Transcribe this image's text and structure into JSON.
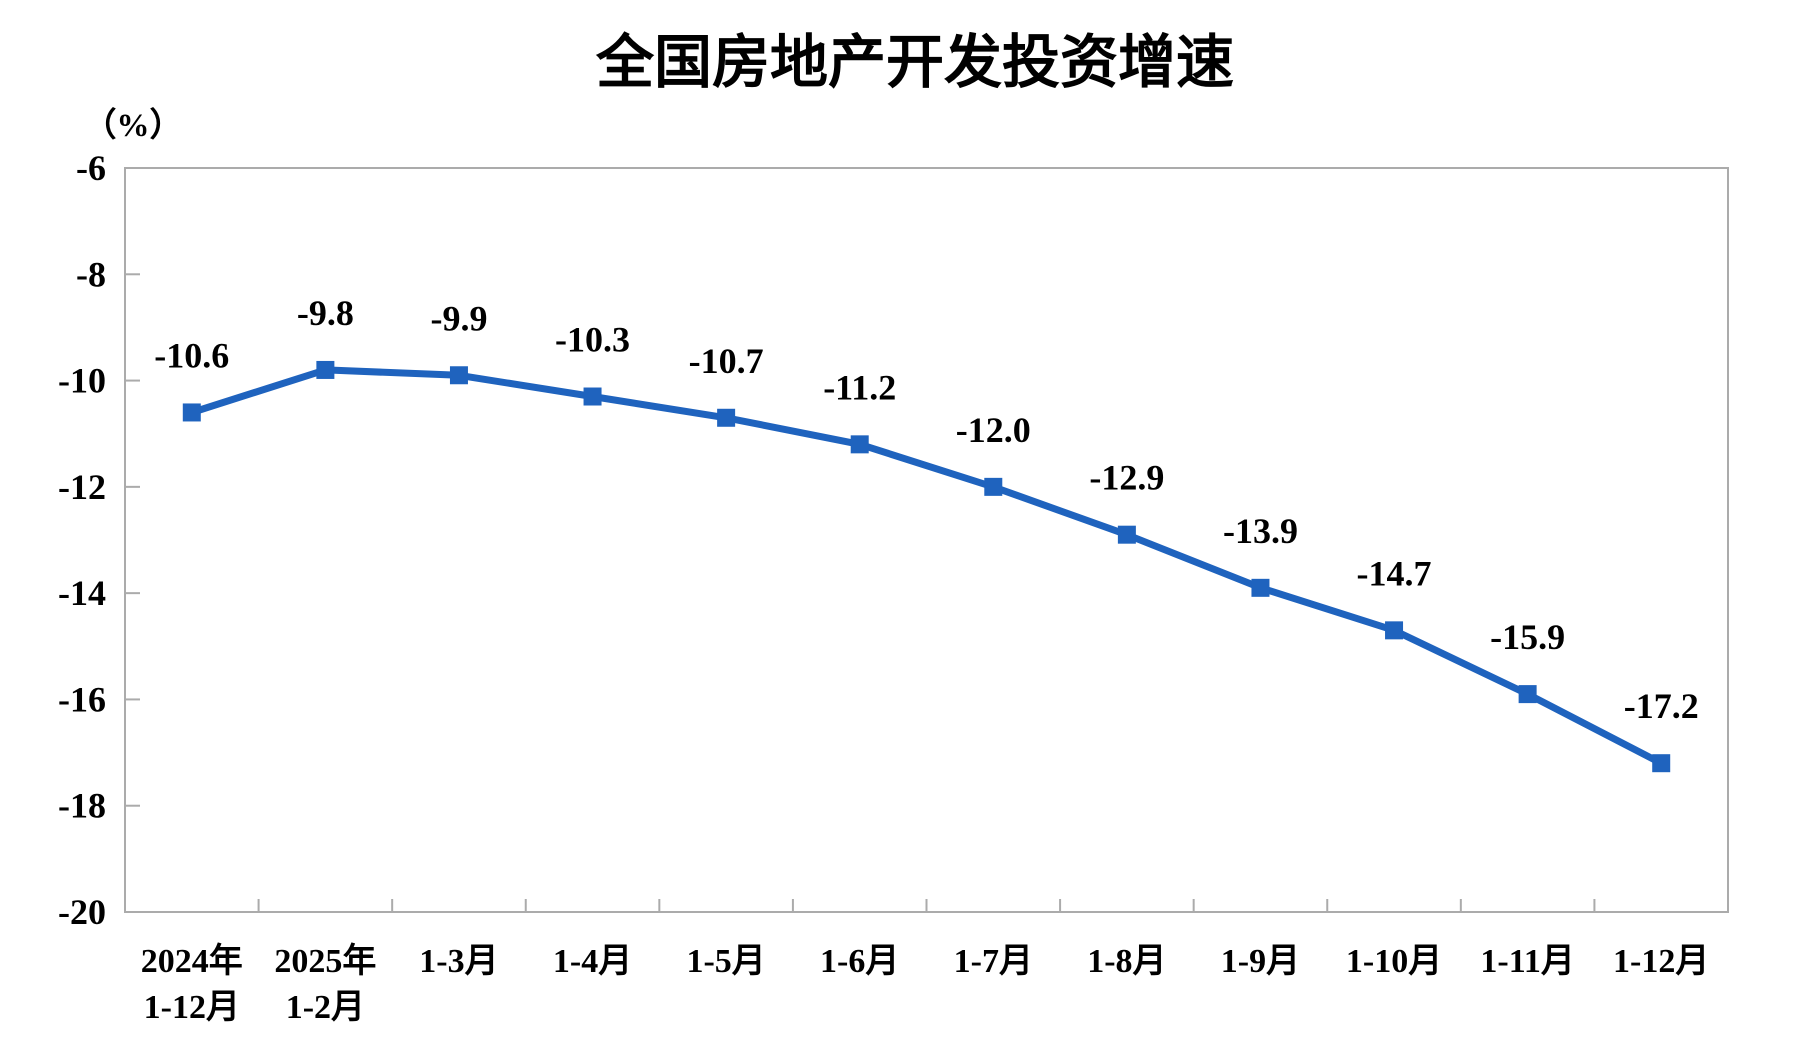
{
  "page": {
    "background_color": "#ffffff"
  },
  "chart_data": {
    "type": "line",
    "title": "全国房地产开发投资增速",
    "unit_label": "（%）",
    "categories": [
      "2024年\n1-12月",
      "2025年\n1-2月",
      "1-3月",
      "1-4月",
      "1-5月",
      "1-6月",
      "1-7月",
      "1-8月",
      "1-9月",
      "1-10月",
      "1-11月",
      "1-12月"
    ],
    "series": [
      {
        "name": "全国房地产开发投资增速",
        "values": [
          -10.6,
          -9.8,
          -9.9,
          -10.3,
          -10.7,
          -11.2,
          -12.0,
          -12.9,
          -13.9,
          -14.7,
          -15.9,
          -17.2
        ],
        "data_labels": [
          "-10.6",
          "-9.8",
          "-9.9",
          "-10.3",
          "-10.7",
          "-11.2",
          "-12.0",
          "-12.9",
          "-13.9",
          "-14.7",
          "-15.9",
          "-17.2"
        ]
      }
    ],
    "y_axis": {
      "min": -20,
      "max": -6,
      "step": 2,
      "tick_labels": [
        "-6",
        "-8",
        "-10",
        "-12",
        "-14",
        "-16",
        "-18",
        "-20"
      ]
    },
    "style": {
      "series_color": "#1F63BE",
      "axis_color": "#ABABAB",
      "text_color": "#000000",
      "marker": "square",
      "grid": false,
      "legend": false
    }
  }
}
